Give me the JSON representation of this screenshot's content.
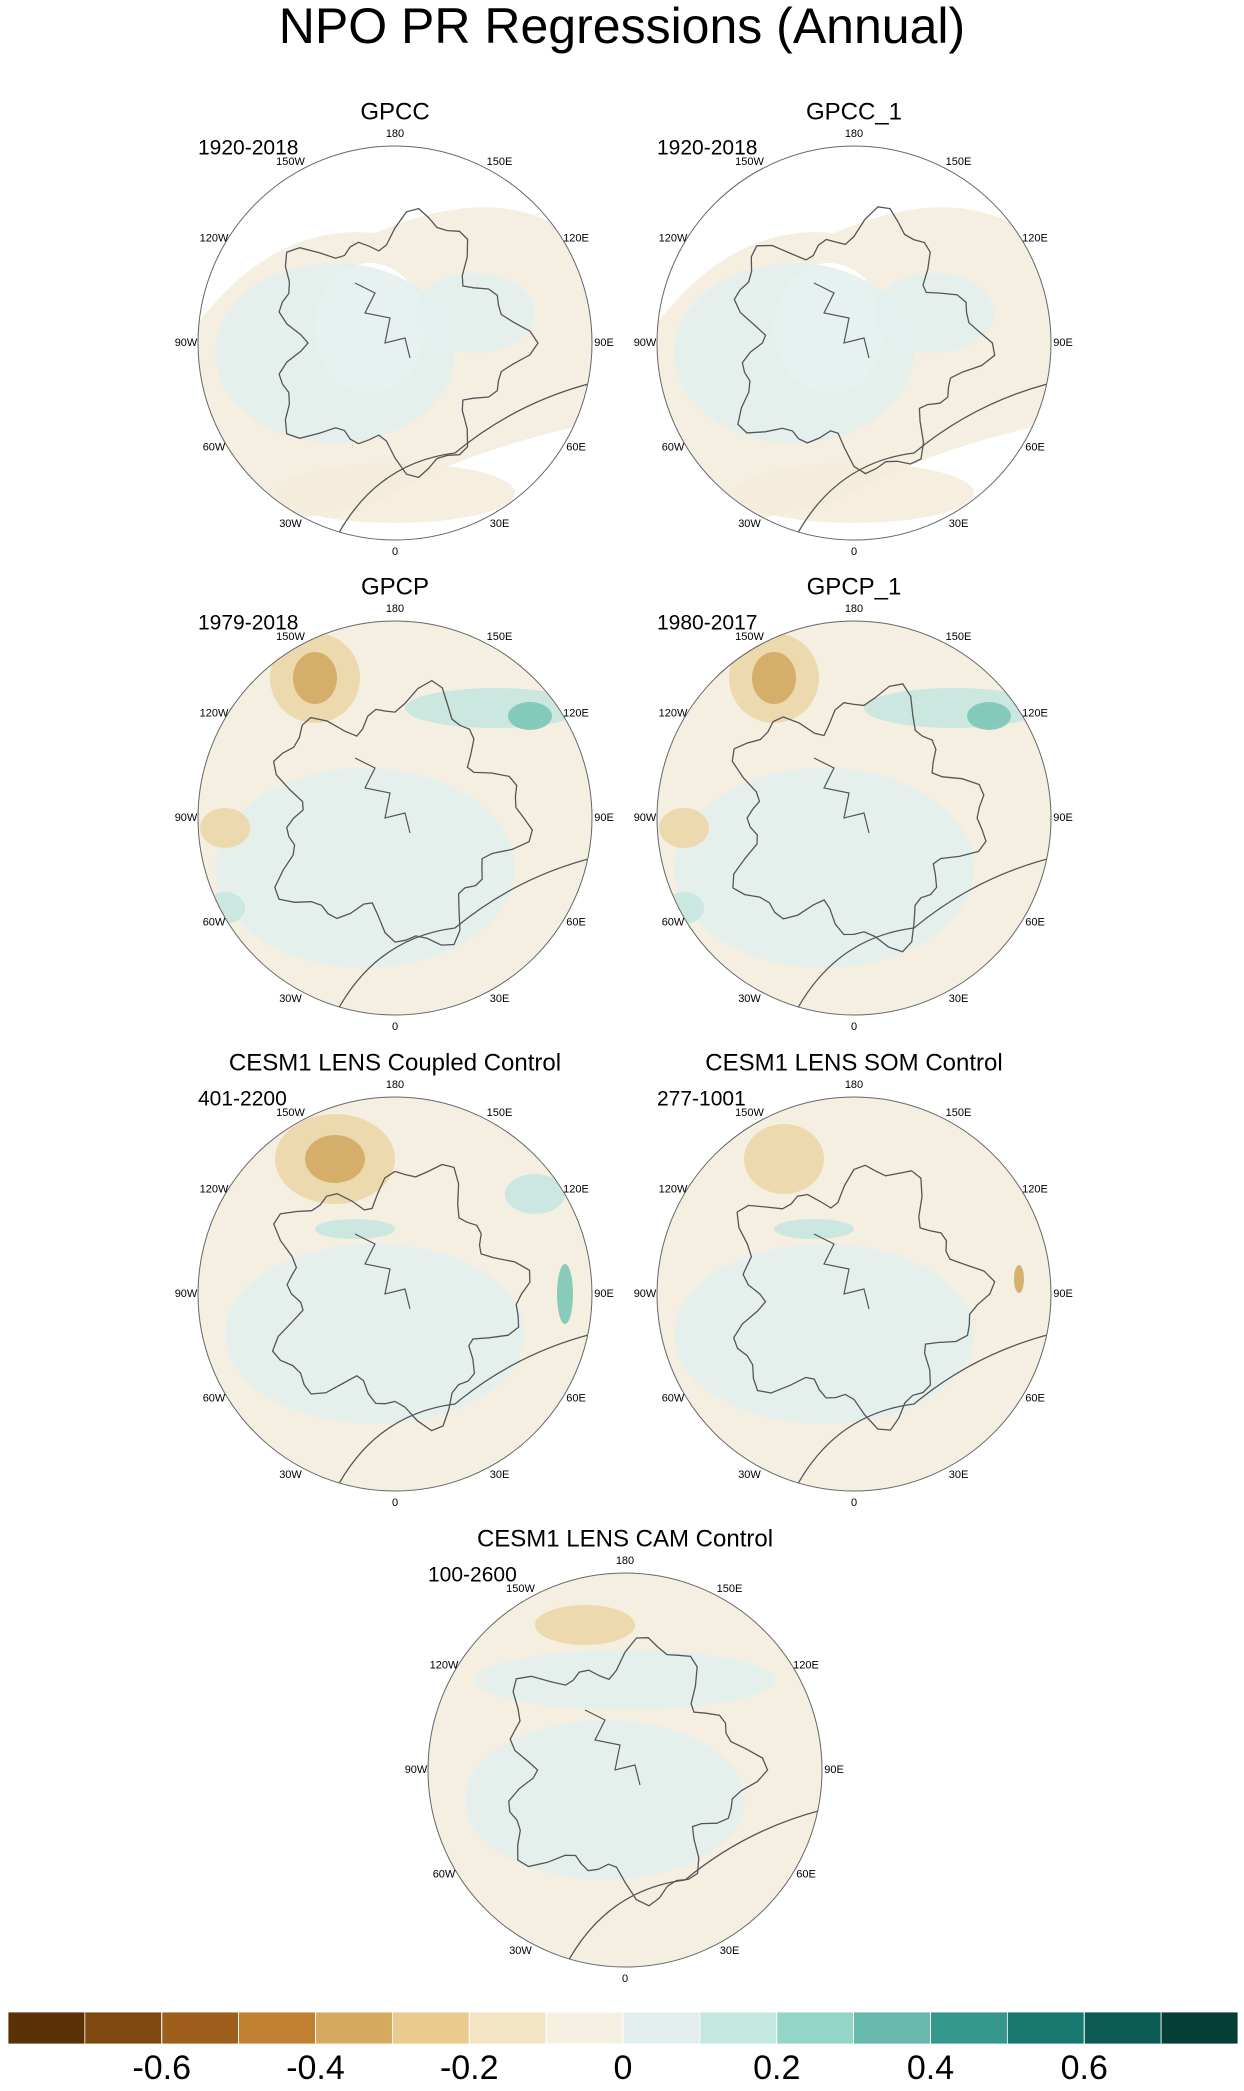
{
  "title": "NPO PR Regressions (Annual)",
  "lon_labels": [
    "180",
    "150E",
    "120E",
    "90E",
    "60E",
    "30E",
    "0",
    "30W",
    "60W",
    "90W",
    "120W",
    "150W"
  ],
  "panels": [
    {
      "title": "GPCC",
      "period": "1920-2018"
    },
    {
      "title": "GPCC_1",
      "period": "1920-2018"
    },
    {
      "title": "GPCP",
      "period": "1979-2018"
    },
    {
      "title": "GPCP_1",
      "period": "1980-2017"
    },
    {
      "title": "CESM1 LENS Coupled Control",
      "period": "401-2200"
    },
    {
      "title": "CESM1 LENS SOM Control",
      "period": "277-1001"
    },
    {
      "title": "CESM1 LENS CAM Control",
      "period": "100-2600"
    }
  ],
  "colorbar": {
    "limits": [
      -0.8,
      0.8
    ],
    "ticks": [
      -0.6,
      -0.4,
      -0.2,
      0,
      0.2,
      0.4,
      0.6
    ],
    "colors": [
      "#5b3106",
      "#7e4811",
      "#9d5f1b",
      "#bf8131",
      "#d5a95e",
      "#e9cb90",
      "#f4e5c4",
      "#f6f0e3",
      "#e2efee",
      "#c4e7e0",
      "#93d5c7",
      "#66b9ab",
      "#36978c",
      "#19786f",
      "#0b5b53",
      "#043e37"
    ]
  }
}
